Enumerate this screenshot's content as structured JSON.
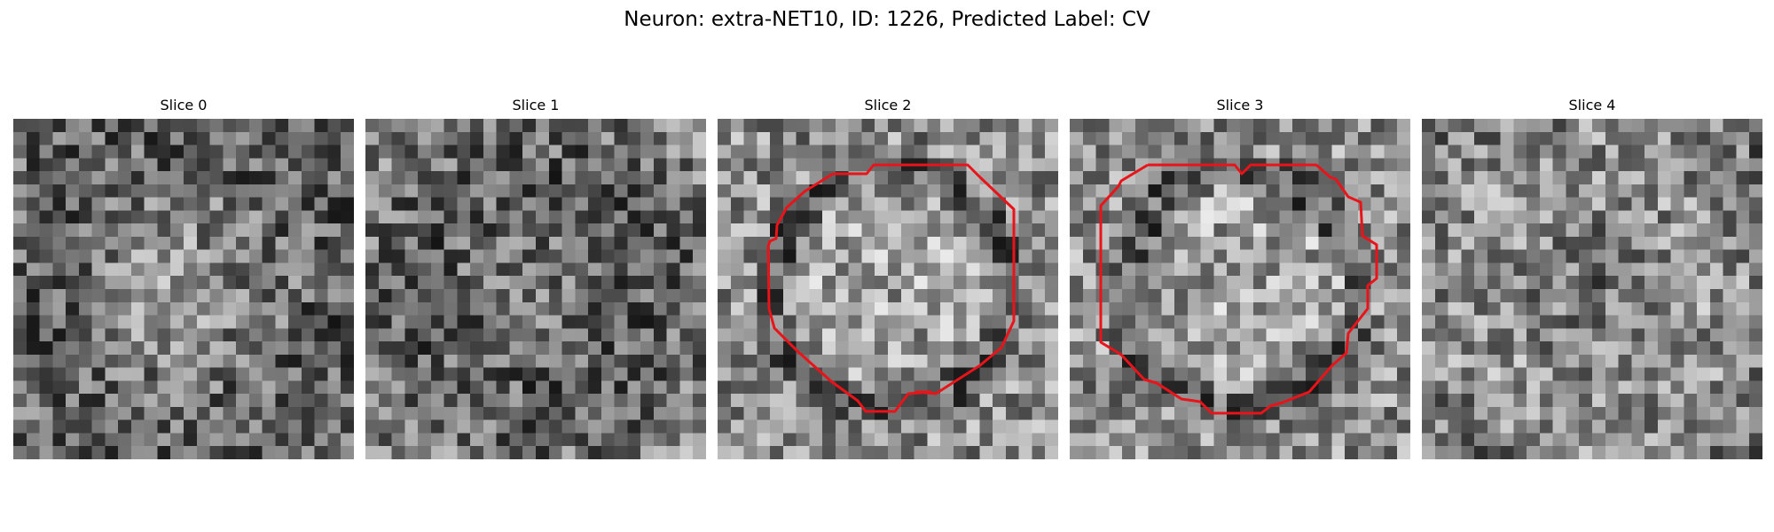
{
  "figure": {
    "title": "Neuron: extra-NET10, ID: 1226, Predicted Label: CV"
  },
  "panels": [
    {
      "title": "Slice 0",
      "has_contour": false,
      "seed": 11
    },
    {
      "title": "Slice 1",
      "has_contour": false,
      "seed": 23
    },
    {
      "title": "Slice 2",
      "has_contour": true,
      "seed": 37
    },
    {
      "title": "Slice 3",
      "has_contour": true,
      "seed": 53
    },
    {
      "title": "Slice 4",
      "has_contour": false,
      "seed": 71
    }
  ],
  "colors": {
    "contour": "#e8141a",
    "background": "#ffffff"
  }
}
